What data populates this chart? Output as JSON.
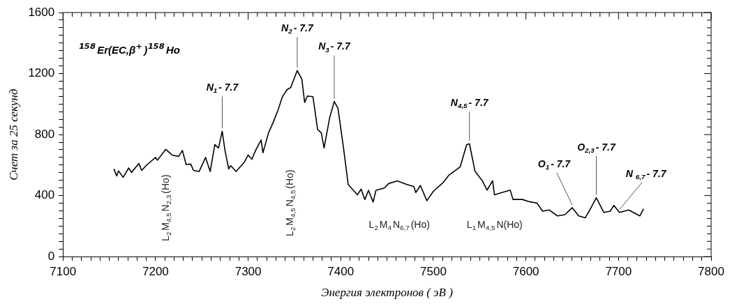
{
  "chart_data": {
    "type": "line",
    "title": "¹⁵⁸Er(EC,β⁺)¹⁵⁸Ho",
    "xlabel": "Энергия электронов ( эВ )",
    "ylabel": "Счет за 25 секунд",
    "x": [
      7155,
      7158,
      7160,
      7165,
      7171,
      7174,
      7182,
      7185,
      7191,
      7200,
      7202,
      7211,
      7218,
      7225,
      7229,
      7233,
      7238,
      7241,
      7247,
      7254,
      7259,
      7264,
      7268,
      7272,
      7275,
      7279,
      7281,
      7287,
      7296,
      7300,
      7304,
      7308,
      7314,
      7316,
      7322,
      7327,
      7332,
      7337,
      7342,
      7346,
      7353,
      7358,
      7361,
      7364,
      7370,
      7375,
      7379,
      7382,
      7388,
      7393,
      7397,
      7403,
      7408,
      7418,
      7422,
      7426,
      7430,
      7435,
      7438,
      7447,
      7452,
      7457,
      7461,
      7471,
      7479,
      7481,
      7486,
      7493,
      7500,
      7510,
      7517,
      7529,
      7536,
      7539,
      7543,
      7545,
      7553,
      7558,
      7564,
      7566,
      7574,
      7583,
      7586,
      7596,
      7604,
      7612,
      7618,
      7625,
      7634,
      7642,
      7650,
      7657,
      7664,
      7669,
      7676,
      7684,
      7691,
      7695,
      7701,
      7711,
      7723,
      7727
    ],
    "series": [
      {
        "color": "#000000",
        "values": [
          575,
          529,
          562,
          520,
          581,
          552,
          611,
          565,
          604,
          650,
          632,
          703,
          666,
          657,
          696,
          604,
          607,
          565,
          558,
          650,
          558,
          735,
          712,
          822,
          696,
          575,
          597,
          558,
          620,
          666,
          638,
          696,
          765,
          681,
          811,
          880,
          956,
          1048,
          1094,
          1109,
          1220,
          1163,
          1011,
          1053,
          1048,
          834,
          811,
          712,
          910,
          1017,
          972,
          712,
          474,
          405,
          443,
          374,
          435,
          358,
          435,
          450,
          480,
          489,
          497,
          474,
          459,
          420,
          466,
          367,
          428,
          482,
          535,
          589,
          734,
          740,
          620,
          559,
          497,
          436,
          497,
          405,
          420,
          436,
          375,
          375,
          360,
          351,
          298,
          306,
          267,
          275,
          321,
          267,
          254,
          306,
          386,
          290,
          298,
          336,
          290,
          306,
          267,
          313
        ]
      }
    ],
    "xlim": [
      7100,
      7800
    ],
    "ylim": [
      0,
      1600
    ],
    "xticks": [
      7100,
      {
        "value": 7110,
        "label": null
      },
      {
        "value": 7120,
        "label": null
      },
      {
        "value": 7130,
        "label": null
      },
      {
        "value": 7140,
        "label": null
      },
      {
        "value": 7150,
        "label": null
      },
      {
        "value": 7160,
        "label": null
      },
      {
        "value": 7170,
        "label": null
      },
      {
        "value": 7180,
        "label": null
      },
      {
        "value": 7190,
        "label": null
      },
      7200,
      {
        "value": 7210,
        "label": null
      },
      {
        "value": 7220,
        "label": null
      },
      {
        "value": 7230,
        "label": null
      },
      {
        "value": 7240,
        "label": null
      },
      {
        "value": 7250,
        "label": null
      },
      {
        "value": 7260,
        "label": null
      },
      {
        "value": 7270,
        "label": null
      },
      {
        "value": 7280,
        "label": null
      },
      {
        "value": 7290,
        "label": null
      },
      7300,
      {
        "value": 7310,
        "label": null
      },
      {
        "value": 7320,
        "label": null
      },
      {
        "value": 7330,
        "label": null
      },
      {
        "value": 7340,
        "label": null
      },
      {
        "value": 7350,
        "label": null
      },
      {
        "value": 7360,
        "label": null
      },
      {
        "value": 7370,
        "label": null
      },
      {
        "value": 7380,
        "label": null
      },
      {
        "value": 7390,
        "label": null
      },
      7400,
      {
        "value": 7410,
        "label": null
      },
      {
        "value": 7420,
        "label": null
      },
      {
        "value": 7430,
        "label": null
      },
      {
        "value": 7440,
        "label": null
      },
      {
        "value": 7450,
        "label": null
      },
      {
        "value": 7460,
        "label": null
      },
      {
        "value": 7470,
        "label": null
      },
      {
        "value": 7480,
        "label": null
      },
      {
        "value": 7490,
        "label": null
      },
      7500,
      {
        "value": 7510,
        "label": null
      },
      {
        "value": 7520,
        "label": null
      },
      {
        "value": 7530,
        "label": null
      },
      {
        "value": 7540,
        "label": null
      },
      {
        "value": 7550,
        "label": null
      },
      {
        "value": 7560,
        "label": null
      },
      {
        "value": 7570,
        "label": null
      },
      {
        "value": 7580,
        "label": null
      },
      {
        "value": 7590,
        "label": null
      },
      7600,
      {
        "value": 7610,
        "label": null
      },
      {
        "value": 7620,
        "label": null
      },
      {
        "value": 7630,
        "label": null
      },
      {
        "value": 7640,
        "label": null
      },
      {
        "value": 7650,
        "label": null
      },
      {
        "value": 7660,
        "label": null
      },
      {
        "value": 7670,
        "label": null
      },
      {
        "value": 7680,
        "label": null
      },
      {
        "value": 7690,
        "label": null
      },
      7700,
      {
        "value": 7710,
        "label": null
      },
      {
        "value": 7720,
        "label": null
      },
      {
        "value": 7730,
        "label": null
      },
      {
        "value": 7740,
        "label": null
      },
      {
        "value": 7750,
        "label": null
      },
      {
        "value": 7760,
        "label": null
      },
      {
        "value": 7770,
        "label": null
      },
      {
        "value": 7780,
        "label": null
      },
      {
        "value": 7790,
        "label": null
      },
      7800
    ],
    "yticks": [
      0,
      {
        "value": 50,
        "label": null
      },
      {
        "value": 100,
        "label": null
      },
      {
        "value": 150,
        "label": null
      },
      {
        "value": 200,
        "label": null
      },
      {
        "value": 250,
        "label": null
      },
      {
        "value": 300,
        "label": null
      },
      {
        "value": 350,
        "label": null
      },
      400,
      {
        "value": 450,
        "label": null
      },
      {
        "value": 500,
        "label": null
      },
      {
        "value": 550,
        "label": null
      },
      {
        "value": 600,
        "label": null
      },
      {
        "value": 650,
        "label": null
      },
      {
        "value": 700,
        "label": null
      },
      {
        "value": 750,
        "label": null
      },
      800,
      {
        "value": 850,
        "label": null
      },
      {
        "value": 900,
        "label": null
      },
      {
        "value": 950,
        "label": null
      },
      {
        "value": 1000,
        "label": null
      },
      {
        "value": 1050,
        "label": null
      },
      {
        "value": 1100,
        "label": null
      },
      {
        "value": 1150,
        "label": null
      },
      1200,
      {
        "value": 1250,
        "label": null
      },
      {
        "value": 1300,
        "label": null
      },
      {
        "value": 1350,
        "label": null
      },
      {
        "value": 1400,
        "label": null
      },
      {
        "value": 1450,
        "label": null
      },
      {
        "value": 1500,
        "label": null
      },
      {
        "value": 1550,
        "label": null
      },
      1600
    ],
    "grid": false,
    "legend": false,
    "marker": "none",
    "annotations": [
      {
        "text": "N$_{1}$- 7.7",
        "x": 7272,
        "y": 822
      },
      {
        "text": "N$_{2}$- 7.7",
        "x": 7353,
        "y": 1220
      },
      {
        "text": "N$_{3}$- 7.7",
        "x": 7393,
        "y": 1017
      },
      {
        "text": "N$_{4,5}$- 7.7",
        "x": 7539,
        "y": 740
      },
      {
        "text": "O$_{1}$- 7.7",
        "x": 7650,
        "y": 321
      },
      {
        "text": "O$_{2,3}$- 7.7",
        "x": 7676,
        "y": 386
      },
      {
        "text": "N $_{6,7}$- 7.7",
        "x": 7701,
        "y": 290
      },
      "L$_{2}$M$_{4,5}$N$_{2,3}$(Ho)",
      "L$_{2}$M$_{4,5}$N$_{4,5}$(Ho)",
      "L$_{2}$M$_{4}$N$_{6,7}$(Ho)",
      "L$_{1}$M$_{4,5}$N(Ho)"
    ]
  }
}
